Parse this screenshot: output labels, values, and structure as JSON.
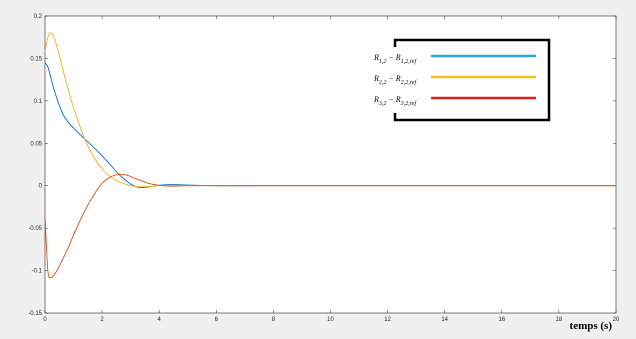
{
  "chart_data": {
    "type": "line",
    "title": "",
    "xlabel": "temps (s)",
    "ylabel": "",
    "xlim": [
      0,
      20
    ],
    "ylim": [
      -0.15,
      0.2
    ],
    "xticks": [
      0,
      2,
      4,
      6,
      8,
      10,
      12,
      14,
      16,
      18,
      20
    ],
    "yticks": [
      -0.15,
      -0.1,
      -0.05,
      0,
      0.05,
      0.1,
      0.15,
      0.2
    ],
    "xtick_labels": [
      "0",
      "2",
      "4",
      "6",
      "8",
      "10",
      "12",
      "14",
      "16",
      "18",
      "20"
    ],
    "ytick_labels": [
      "-0.15",
      "-0.1",
      "-0.05",
      "0",
      "0.05",
      "0.1",
      "0.15",
      "0.2"
    ],
    "grid": false,
    "legend_position": "top-right",
    "series": [
      {
        "name": "R1,2 − R1,2,ref",
        "color": "#0072bd",
        "x": [
          0,
          0.1,
          0.2,
          0.3,
          0.5,
          0.7,
          1.0,
          1.4,
          1.8,
          2.2,
          2.6,
          3.0,
          3.3,
          3.6,
          4.0,
          4.5,
          5.0,
          6.0,
          8.0,
          20.0
        ],
        "y": [
          0.145,
          0.14,
          0.128,
          0.115,
          0.095,
          0.08,
          0.068,
          0.055,
          0.042,
          0.028,
          0.013,
          0.002,
          -0.002,
          -0.0015,
          0.0005,
          0.0015,
          0.0008,
          0.0,
          0.0,
          0.0
        ]
      },
      {
        "name": "R2,2 − R2,2,ref",
        "color": "#edb120",
        "x": [
          0,
          0.1,
          0.2,
          0.3,
          0.45,
          0.6,
          0.8,
          1.0,
          1.3,
          1.6,
          2.0,
          2.4,
          2.8,
          3.2,
          3.6,
          4.0,
          4.5,
          5.0,
          6.0,
          8.0,
          20.0
        ],
        "y": [
          0.158,
          0.175,
          0.18,
          0.176,
          0.16,
          0.14,
          0.115,
          0.092,
          0.063,
          0.04,
          0.02,
          0.008,
          0.002,
          -0.001,
          -0.001,
          0.0,
          0.0005,
          0.0003,
          0.0,
          0.0,
          0.0
        ]
      },
      {
        "name": "R3,2 − R3,2,ref",
        "color": "#d95319",
        "x": [
          0,
          0.1,
          0.2,
          0.3,
          0.45,
          0.6,
          0.8,
          1.0,
          1.3,
          1.6,
          2.0,
          2.4,
          2.8,
          3.2,
          3.6,
          4.0,
          4.5,
          5.0,
          6.0,
          8.0,
          20.0
        ],
        "y": [
          -0.035,
          -0.1,
          -0.108,
          -0.106,
          -0.098,
          -0.088,
          -0.074,
          -0.058,
          -0.036,
          -0.017,
          0.003,
          0.012,
          0.013,
          0.008,
          0.003,
          0.0005,
          -0.0005,
          0.0,
          0.0,
          0.0,
          0.0
        ]
      }
    ],
    "legend": {
      "entries": [
        {
          "main_sub": "1,2",
          "ref_sub": "1,2,ref",
          "color": "#2aa7df"
        },
        {
          "main_sub": "2,2",
          "ref_sub": "2,2,ref",
          "color": "#f2c21b"
        },
        {
          "main_sub": "3,2",
          "ref_sub": "3,2,ref",
          "color": "#e02020"
        }
      ]
    }
  }
}
